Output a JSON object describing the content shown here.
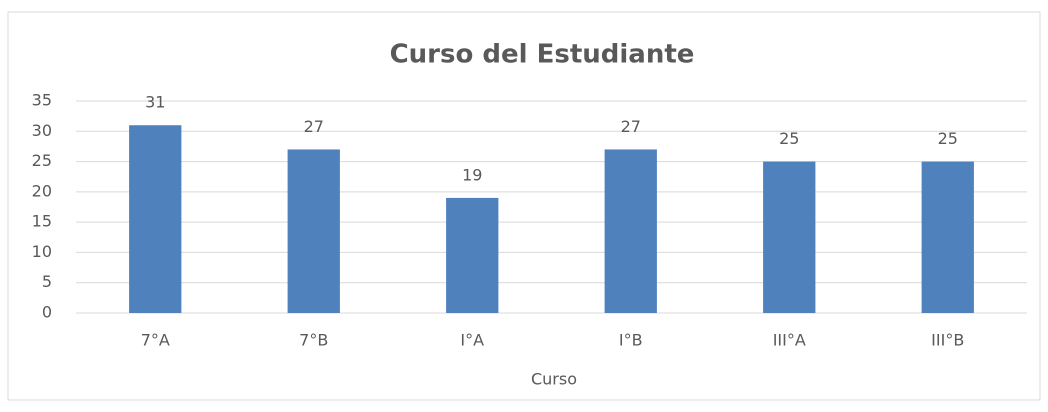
{
  "chart_data": {
    "type": "bar",
    "title": "Curso del Estudiante",
    "x_label": "Curso",
    "categories": [
      "7°A",
      "7°B",
      "I°A",
      "I°B",
      "III°A",
      "III°B"
    ],
    "values": [
      31,
      27,
      19,
      27,
      25,
      25
    ],
    "color": "#4f81bd",
    "ylim": [
      0,
      35
    ],
    "yticks": [
      0,
      5,
      10,
      15,
      20,
      25,
      30,
      35
    ],
    "grid": true
  }
}
